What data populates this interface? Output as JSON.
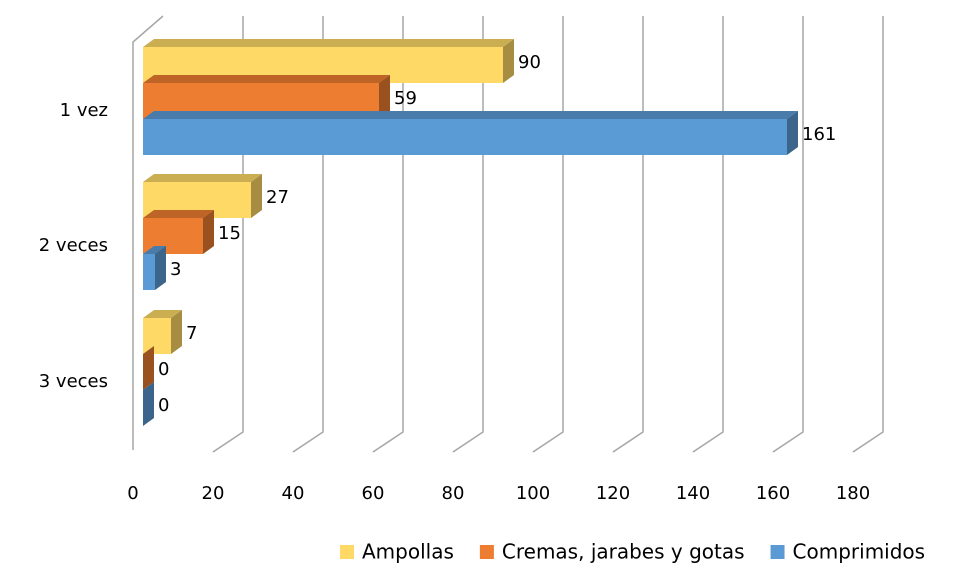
{
  "chart_data": {
    "type": "bar",
    "orientation": "horizontal",
    "categories": [
      "1 vez",
      "2 veces",
      "3 veces"
    ],
    "series": [
      {
        "name": "Ampollas",
        "color": "#ffd966",
        "values": [
          90,
          27,
          7
        ]
      },
      {
        "name": "Cremas, jarabes y gotas",
        "color": "#ed7d31",
        "values": [
          59,
          15,
          0
        ]
      },
      {
        "name": "Comprimidos",
        "color": "#5b9bd5",
        "values": [
          161,
          3,
          0
        ]
      }
    ],
    "xlim": [
      0,
      180
    ],
    "xticks": [
      0,
      20,
      40,
      60,
      80,
      100,
      120,
      140,
      160,
      180
    ],
    "grid": true,
    "legend": "bottom"
  }
}
